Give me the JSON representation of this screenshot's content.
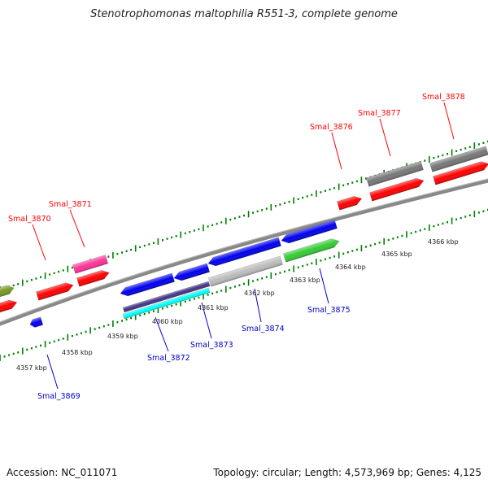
{
  "title": "Stenotrophomonas maltophilia R551-3, complete genome",
  "footer": {
    "accession": "Accession: NC_011071",
    "summary": "Topology: circular; Length: 4,573,969 bp; Genes: 4,125"
  },
  "kbp_labels": [
    "4357 kbp",
    "4358 kbp",
    "4359 kbp",
    "4360 kbp",
    "4361 kbp",
    "4362 kbp",
    "4363 kbp",
    "4364 kbp",
    "4365 kbp",
    "4366 kbp"
  ],
  "forward_gene_labels": [
    "Smal_3870",
    "Smal_3871",
    "Smal_3876",
    "Smal_3877",
    "Smal_3878"
  ],
  "reverse_gene_labels": [
    "Smal_3869",
    "Smal_3872",
    "Smal_3873",
    "Smal_3874",
    "Smal_3875"
  ],
  "colors": {
    "forward_label": "#ff0000",
    "reverse_label": "#0000cc",
    "tick": "#008000",
    "backbone": "#888888",
    "gene_red": "#ff0000",
    "gene_blue": "#0000ee",
    "gene_gray": "#777777",
    "gene_green": "#33cc33",
    "gene_pink": "#ff3399",
    "gene_olive": "#779922",
    "gene_cyan": "#00ffff",
    "gene_purple": "#443388",
    "gene_silver": "#bbbbbb"
  }
}
